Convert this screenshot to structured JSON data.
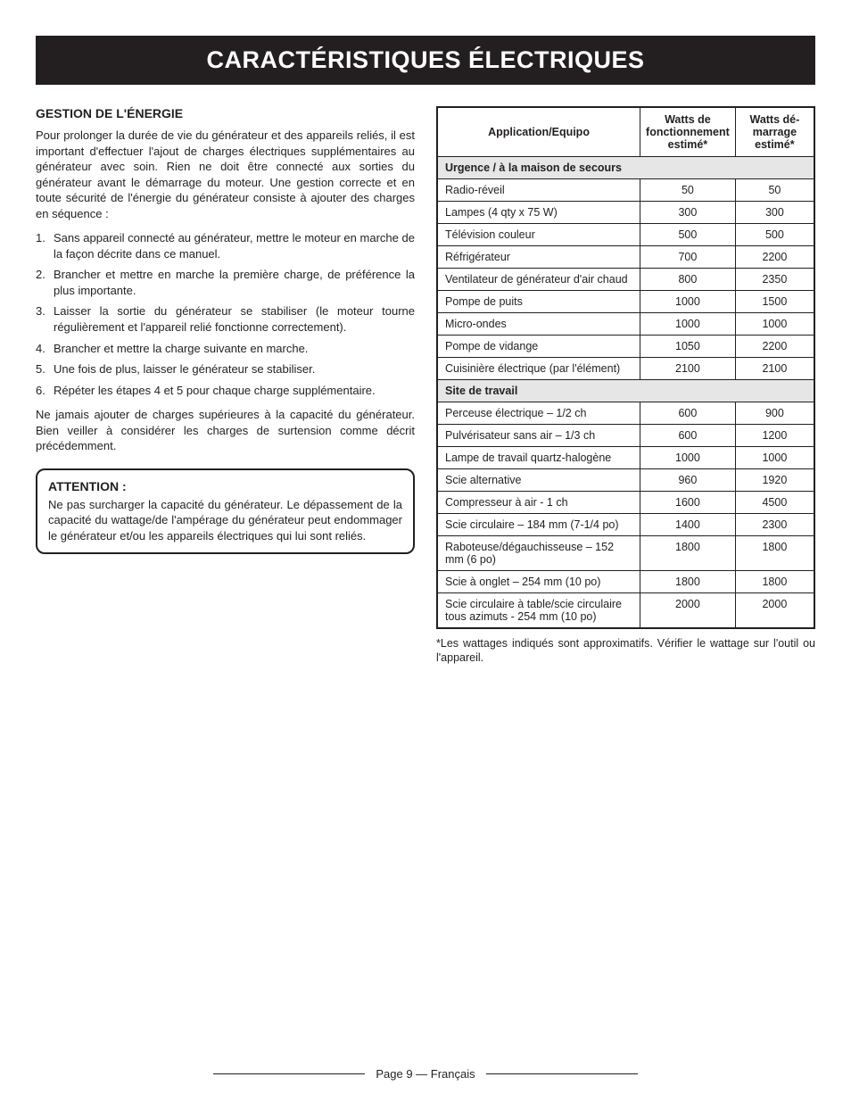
{
  "colors": {
    "text": "#231f20",
    "background": "#ffffff",
    "title_bar_bg": "#231f20",
    "title_bar_text": "#ffffff",
    "section_row_bg": "#e6e6e6",
    "border": "#231f20"
  },
  "typography": {
    "title_fontsize": 27,
    "heading_fontsize": 14,
    "body_fontsize": 13,
    "table_fontsize": 12.5,
    "font_family": "Arial, Helvetica, sans-serif"
  },
  "title": "CARACTÉRISTIQUES ÉLECTRIQUES",
  "left": {
    "heading": "GESTION DE L'ÉNERGIE",
    "intro": "Pour prolonger la durée de vie du générateur et des appareils reliés, il est important d'effectuer l'ajout de charges électriques supplémentaires au générateur avec soin. Rien ne doit être connecté aux sorties du générateur avant le démarrage du moteur. Une gestion correcte et en toute sécurité de l'énergie du générateur consiste à ajouter des charges en séquence :",
    "steps": [
      "Sans appareil connecté au générateur, mettre le moteur en marche de la façon décrite dans ce manuel.",
      "Brancher et mettre en marche la première charge, de préférence la plus importante.",
      "Laisser la sortie du générateur se stabiliser (le moteur tourne régulièrement et l'appareil relié fonctionne correctement).",
      "Brancher et mettre la charge suivante en marche.",
      "Une fois de plus, laisser le générateur se stabiliser.",
      "Répéter les étapes 4 et 5 pour chaque charge supplémentaire."
    ],
    "after": "Ne jamais ajouter de charges supérieures à la capacité du générateur. Bien veiller à considérer les charges de surtension comme décrit précédemment.",
    "attention_title": "ATTENTION :",
    "attention_text": "Ne pas surcharger la capacité du générateur. Le dépassement de la capacité du wattage/de l'ampérage du générateur peut endommager le générateur et/ou les appareils électriques qui lui sont reliés."
  },
  "table": {
    "type": "table",
    "columns": [
      "Application/Equipo",
      "Watts de fonctionnement estimé*",
      "Watts dé-marrage estimé*"
    ],
    "column_widths_pct": [
      56,
      22,
      22
    ],
    "alignments": [
      "left",
      "center",
      "center"
    ],
    "sections": [
      {
        "heading": "Urgence / à la maison de secours",
        "rows": [
          [
            "Radio-réveil",
            "50",
            "50"
          ],
          [
            "Lampes (4 qty x 75 W)",
            "300",
            "300"
          ],
          [
            "Télévision couleur",
            "500",
            "500"
          ],
          [
            "Réfrigérateur",
            "700",
            "2200"
          ],
          [
            "Ventilateur de générateur d'air chaud",
            "800",
            "2350"
          ],
          [
            "Pompe de puits",
            "1000",
            "1500"
          ],
          [
            "Micro-ondes",
            "1000",
            "1000"
          ],
          [
            "Pompe de vidange",
            "1050",
            "2200"
          ],
          [
            "Cuisinière électrique (par l'élément)",
            "2100",
            "2100"
          ]
        ]
      },
      {
        "heading": "Site de travail",
        "rows": [
          [
            "Perceuse électrique – 1/2 ch",
            "600",
            "900"
          ],
          [
            "Pulvérisateur sans air – 1/3 ch",
            "600",
            "1200"
          ],
          [
            "Lampe de travail quartz-halogène",
            "1000",
            "1000"
          ],
          [
            "Scie alternative",
            "960",
            "1920"
          ],
          [
            "Compresseur à air - 1 ch",
            "1600",
            "4500"
          ],
          [
            "Scie circulaire – 184 mm (7-1/4 po)",
            "1400",
            "2300"
          ],
          [
            "Raboteuse/dégauchisseuse – 152 mm (6 po)",
            "1800",
            "1800"
          ],
          [
            "Scie à onglet – 254 mm (10 po)",
            "1800",
            "1800"
          ],
          [
            "Scie circulaire à table/scie circulaire tous azimuts - 254 mm (10 po)",
            "2000",
            "2000"
          ]
        ]
      }
    ],
    "footnote": "*Les wattages indiqués sont approximatifs. Vérifier le wattage sur l'outil ou l'appareil."
  },
  "footer": "Page 9 — Français"
}
